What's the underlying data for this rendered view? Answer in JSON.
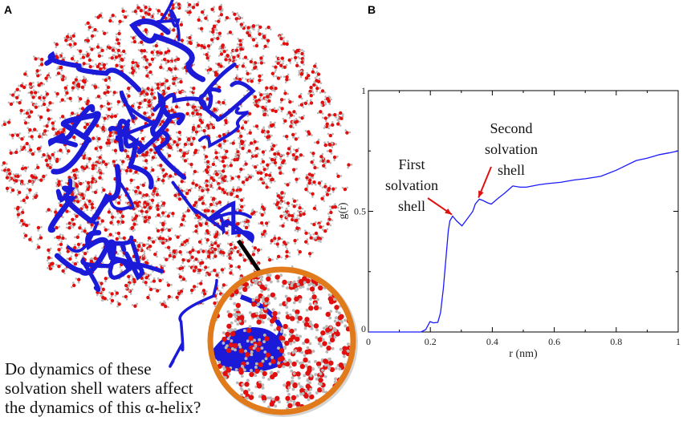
{
  "panels": {
    "a_label": "A",
    "b_label": "B"
  },
  "panel_a": {
    "caption_lines": [
      "Do dynamics of these",
      "solvation shell waters affect",
      "the dynamics of this α-helix?"
    ],
    "colors": {
      "protein": "#1a1ad8",
      "oxygen": "#e01010",
      "hydrogen": "#b8b8b8",
      "inset_ring": "#e07a1a",
      "pointer_arrow": "#000000"
    }
  },
  "chart_data": {
    "type": "line",
    "xlabel": "r (nm)",
    "ylabel": "g(r)",
    "xlim": [
      0,
      1
    ],
    "ylim": [
      0,
      1
    ],
    "xticks": [
      "0",
      "0.2",
      "0.4",
      "0.6",
      "0.8",
      "1"
    ],
    "yticks": [
      "0",
      "0.5",
      "1"
    ],
    "grid": false,
    "series": [
      {
        "color": "#1a1aff",
        "x": [
          0,
          0.17,
          0.185,
          0.199,
          0.21,
          0.224,
          0.233,
          0.242,
          0.25,
          0.258,
          0.263,
          0.272,
          0.285,
          0.302,
          0.32,
          0.337,
          0.345,
          0.358,
          0.37,
          0.385,
          0.397,
          0.42,
          0.44,
          0.466,
          0.49,
          0.51,
          0.55,
          0.58,
          0.62,
          0.665,
          0.7,
          0.75,
          0.8,
          0.864,
          0.9,
          0.94,
          0.97,
          1.0
        ],
        "y": [
          0,
          0,
          0.01,
          0.043,
          0.038,
          0.04,
          0.08,
          0.18,
          0.3,
          0.42,
          0.46,
          0.48,
          0.46,
          0.44,
          0.47,
          0.5,
          0.53,
          0.55,
          0.545,
          0.535,
          0.53,
          0.555,
          0.575,
          0.605,
          0.6,
          0.6,
          0.61,
          0.615,
          0.62,
          0.63,
          0.635,
          0.645,
          0.67,
          0.71,
          0.72,
          0.735,
          0.742,
          0.75
        ]
      }
    ],
    "annotations": [
      {
        "lines": [
          "First",
          "solvation",
          "shell"
        ],
        "x": 0.272,
        "y": 0.48,
        "arrow_color": "#e01010"
      },
      {
        "lines": [
          "Second",
          "solvation",
          "shell"
        ],
        "x": 0.358,
        "y": 0.55,
        "arrow_color": "#e01010"
      }
    ]
  }
}
